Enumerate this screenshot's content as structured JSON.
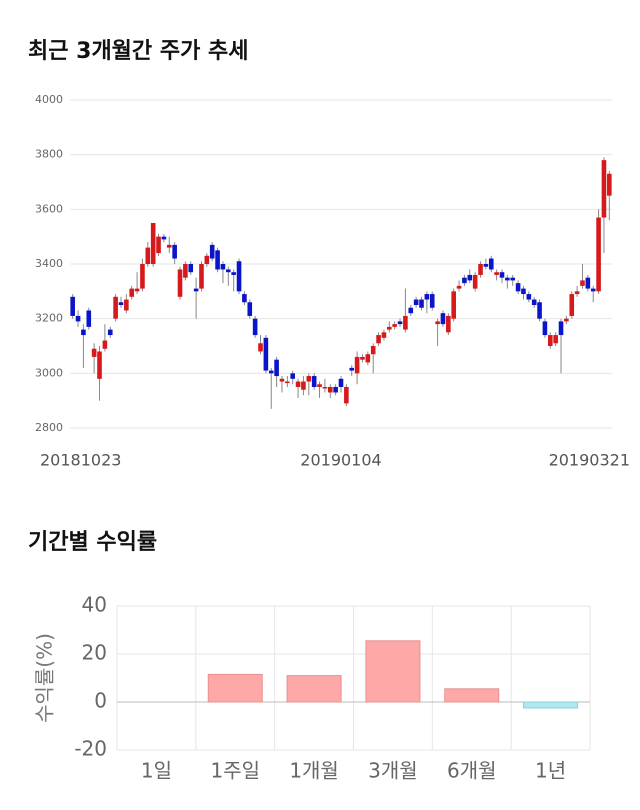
{
  "chart_data": [
    {
      "type": "candlestick",
      "title": "최근 3개월간 주가 추세",
      "categories": [
        "20181023",
        null,
        null,
        null,
        null,
        null,
        null,
        null,
        null,
        null,
        null,
        null,
        null,
        null,
        null,
        null,
        null,
        null,
        null,
        null,
        null,
        null,
        null,
        null,
        null,
        null,
        null,
        null,
        null,
        null,
        null,
        null,
        null,
        null,
        null,
        null,
        null,
        null,
        null,
        null,
        null,
        null,
        null,
        null,
        null,
        null,
        null,
        null,
        null,
        null,
        "20190104",
        null,
        null,
        null,
        null,
        null,
        null,
        null,
        null,
        null,
        null,
        null,
        null,
        null,
        null,
        null,
        null,
        null,
        null,
        null,
        null,
        null,
        null,
        null,
        null,
        null,
        null,
        null,
        null,
        null,
        null,
        null,
        null,
        null,
        null,
        null,
        null,
        null,
        null,
        null,
        null,
        null,
        null,
        null,
        null,
        null,
        null,
        null,
        null,
        null,
        "20190321"
      ],
      "open": [
        3280,
        3210,
        3160,
        3230,
        3060,
        2980,
        3090,
        3160,
        3200,
        3260,
        3230,
        3280,
        3300,
        3310,
        3400,
        3400,
        3440,
        3500,
        3460,
        3470,
        3280,
        3350,
        3400,
        3310,
        3310,
        3400,
        3470,
        3450,
        3400,
        3380,
        3370,
        3410,
        3290,
        3260,
        3200,
        3080,
        3130,
        3010,
        3050,
        2970,
        2970,
        3000,
        2950,
        2940,
        2970,
        2990,
        2950,
        2950,
        2930,
        2950,
        2980,
        2890,
        3020,
        3000,
        3050,
        3040,
        3070,
        3110,
        3130,
        3160,
        3170,
        3190,
        3160,
        3240,
        3270,
        3270,
        3290,
        3290,
        3180,
        3220,
        3150,
        3200,
        3310,
        3350,
        3360,
        3310,
        3360,
        3400,
        3420,
        3360,
        3370,
        3350,
        3350,
        3330,
        3310,
        3290,
        3270,
        3260,
        3190,
        3100,
        3110,
        3190,
        3190,
        3210,
        3290,
        3320,
        3350,
        3310,
        3300,
        3570,
        3650
      ],
      "high": [
        3290,
        3230,
        3180,
        3240,
        3110,
        3100,
        3180,
        3170,
        3290,
        3280,
        3290,
        3320,
        3370,
        3420,
        3480,
        3550,
        3510,
        3510,
        3500,
        3480,
        3390,
        3410,
        3410,
        3350,
        3410,
        3440,
        3480,
        3460,
        3410,
        3390,
        3380,
        3420,
        3300,
        3270,
        3210,
        3140,
        3140,
        3020,
        3060,
        2990,
        2990,
        3010,
        2980,
        2990,
        3000,
        3000,
        2970,
        2980,
        2960,
        2960,
        2990,
        2960,
        3030,
        3080,
        3070,
        3080,
        3110,
        3150,
        3160,
        3190,
        3190,
        3200,
        3310,
        3250,
        3280,
        3280,
        3300,
        3300,
        3200,
        3230,
        3220,
        3310,
        3340,
        3360,
        3380,
        3370,
        3410,
        3420,
        3430,
        3380,
        3380,
        3360,
        3360,
        3340,
        3320,
        3300,
        3280,
        3270,
        3200,
        3150,
        3150,
        3200,
        3210,
        3300,
        3320,
        3400,
        3360,
        3320,
        3600,
        3790,
        3740
      ],
      "low": [
        3200,
        3170,
        3020,
        3160,
        3000,
        2900,
        3080,
        3130,
        3190,
        3240,
        3220,
        3270,
        3290,
        3300,
        3390,
        3390,
        3430,
        3480,
        3440,
        3400,
        3270,
        3340,
        3360,
        3200,
        3300,
        3390,
        3410,
        3370,
        3330,
        3320,
        3300,
        3290,
        3250,
        3200,
        3130,
        3070,
        3000,
        2870,
        2950,
        2930,
        2950,
        2960,
        2910,
        2920,
        2920,
        2940,
        2910,
        2930,
        2910,
        2920,
        2930,
        2880,
        2990,
        2960,
        3040,
        3030,
        3000,
        3100,
        3120,
        3150,
        3160,
        3170,
        3150,
        3210,
        3240,
        3230,
        3220,
        3230,
        3100,
        3170,
        3140,
        3190,
        3300,
        3320,
        3330,
        3300,
        3350,
        3380,
        3370,
        3340,
        3330,
        3310,
        3320,
        3290,
        3270,
        3260,
        3240,
        3190,
        3130,
        3090,
        3100,
        3000,
        3180,
        3200,
        3280,
        3310,
        3300,
        3260,
        3290,
        3440,
        3560
      ],
      "close": [
        3210,
        3190,
        3140,
        3170,
        3090,
        3080,
        3120,
        3140,
        3280,
        3250,
        3270,
        3310,
        3310,
        3400,
        3460,
        3550,
        3500,
        3490,
        3470,
        3420,
        3380,
        3400,
        3370,
        3300,
        3400,
        3430,
        3420,
        3380,
        3380,
        3370,
        3360,
        3300,
        3260,
        3210,
        3140,
        3110,
        3010,
        3000,
        2990,
        2980,
        2970,
        2980,
        2970,
        2970,
        2990,
        2950,
        2960,
        2950,
        2950,
        2930,
        2950,
        2950,
        3010,
        3060,
        3060,
        3070,
        3100,
        3140,
        3150,
        3170,
        3180,
        3180,
        3210,
        3220,
        3250,
        3240,
        3270,
        3240,
        3190,
        3180,
        3210,
        3300,
        3320,
        3330,
        3340,
        3360,
        3400,
        3390,
        3380,
        3370,
        3350,
        3340,
        3340,
        3300,
        3290,
        3270,
        3250,
        3200,
        3140,
        3140,
        3140,
        3140,
        3200,
        3290,
        3300,
        3340,
        3310,
        3300,
        3570,
        3780,
        3730
      ],
      "up_color": "#d7191c",
      "down_color": "#0a14c8",
      "ylim": [
        2800,
        4000
      ],
      "yticks": [
        2800,
        3000,
        3200,
        3400,
        3600,
        3800,
        4000
      ],
      "grid": true
    },
    {
      "type": "bar",
      "title": "기간별 수익률",
      "ylabel": "수익률(%)",
      "categories": [
        "1일",
        "1주일",
        "1개월",
        "3개월",
        "6개월",
        "1년"
      ],
      "values": [
        0,
        11.5,
        11,
        25.5,
        5.5,
        -2.5
      ],
      "positive_color": "#ffa8a8",
      "negative_color": "#aee8f0",
      "ylim": [
        -20,
        40
      ],
      "yticks": [
        -20,
        0,
        20,
        40
      ],
      "grid": true
    }
  ]
}
